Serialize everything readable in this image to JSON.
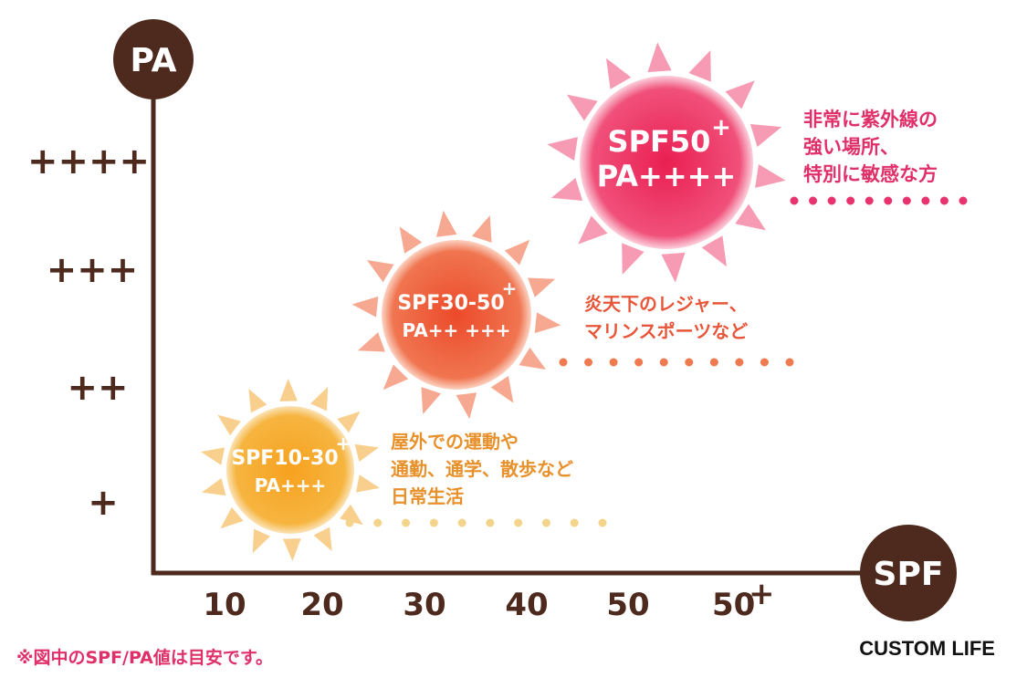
{
  "y_axis": {
    "label": "PA",
    "ticks": [
      "++++",
      "+++",
      "++",
      "+"
    ]
  },
  "x_axis": {
    "label": "SPF",
    "ticks": [
      "10",
      "20",
      "30",
      "40",
      "50"
    ],
    "last_tick": {
      "text": "50",
      "sup": "+"
    }
  },
  "suns": [
    {
      "spf": "SPF10-30",
      "sup": "+",
      "pa": "PA+++",
      "description": [
        "屋外での運動や",
        "通勤、通学、散歩など",
        "日常生活"
      ]
    },
    {
      "spf": "SPF30-50",
      "sup": "+",
      "pa": "PA++ +++",
      "description": [
        "炎天下のレジャー、",
        "マリンスポーツなど"
      ]
    },
    {
      "spf": "SPF50",
      "sup": "+",
      "pa": "PA++++",
      "description": [
        "非常に紫外線の",
        "強い場所、",
        "特別に敏感な方"
      ]
    }
  ],
  "footnote": "※図中のSPF/PA値は目安です。",
  "logo": "CUSTOM LIFE"
}
